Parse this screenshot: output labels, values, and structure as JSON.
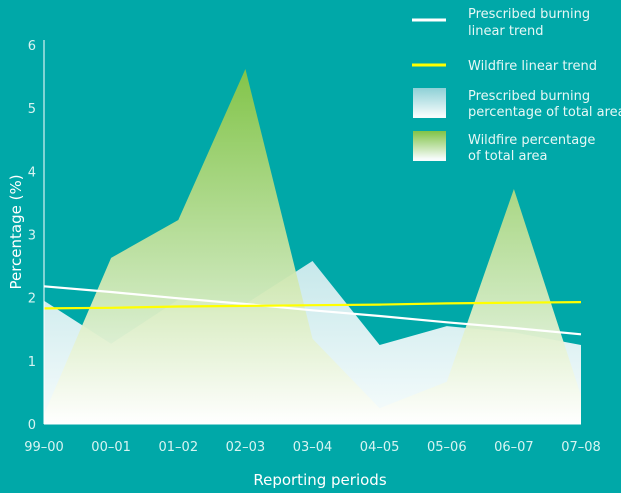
{
  "chart_data": {
    "type": "area",
    "xlabel": "Reporting periods",
    "ylabel": "Percentage (%)",
    "ylim": [
      0,
      6
    ],
    "yticks": [
      "0",
      "1",
      "2",
      "3",
      "4",
      "5",
      "6"
    ],
    "categories": [
      "99–00",
      "00–01",
      "01–02",
      "02–03",
      "03–04",
      "04–05",
      "05–06",
      "06–07",
      "07–08"
    ],
    "series": [
      {
        "name": "Prescribed burning percentage of total area",
        "kind": "area",
        "values": [
          1.95,
          1.27,
          1.97,
          1.9,
          2.58,
          1.25,
          1.55,
          1.45,
          1.25
        ],
        "color_top": "#9bd4da",
        "color_bottom": "#ffffff"
      },
      {
        "name": "Wildfire percentage of total area",
        "kind": "area",
        "values": [
          0.15,
          2.63,
          3.23,
          5.62,
          1.35,
          0.25,
          0.67,
          3.72,
          0.45
        ],
        "color_top": "#8cc63f",
        "color_bottom": "#ffffff"
      },
      {
        "name": "Prescribed burning linear trend",
        "kind": "line",
        "values": [
          2.18,
          2.09,
          1.99,
          1.9,
          1.8,
          1.71,
          1.61,
          1.52,
          1.42
        ],
        "color": "#ffffff"
      },
      {
        "name": "Wildfire linear trend",
        "kind": "line",
        "values": [
          1.83,
          1.84,
          1.86,
          1.87,
          1.88,
          1.89,
          1.91,
          1.92,
          1.93
        ],
        "color": "#ffff00"
      }
    ],
    "legend": {
      "position": "top-right",
      "items": [
        {
          "line1": "Prescribed burning",
          "line2": "linear trend",
          "swatch": "line",
          "color": "#ffffff"
        },
        {
          "line1": "Wildfire linear trend",
          "line2": "",
          "swatch": "line",
          "color": "#ffff00"
        },
        {
          "line1": "Prescribed burning",
          "line2": "percentage of total area",
          "swatch": "box",
          "color_top": "#9bd4da",
          "color_bottom": "#ffffff"
        },
        {
          "line1": "Wildfire percentage",
          "line2": "of total area",
          "swatch": "box",
          "color_top": "#8cc63f",
          "color_bottom": "#ffffff"
        }
      ]
    },
    "grid": false
  }
}
